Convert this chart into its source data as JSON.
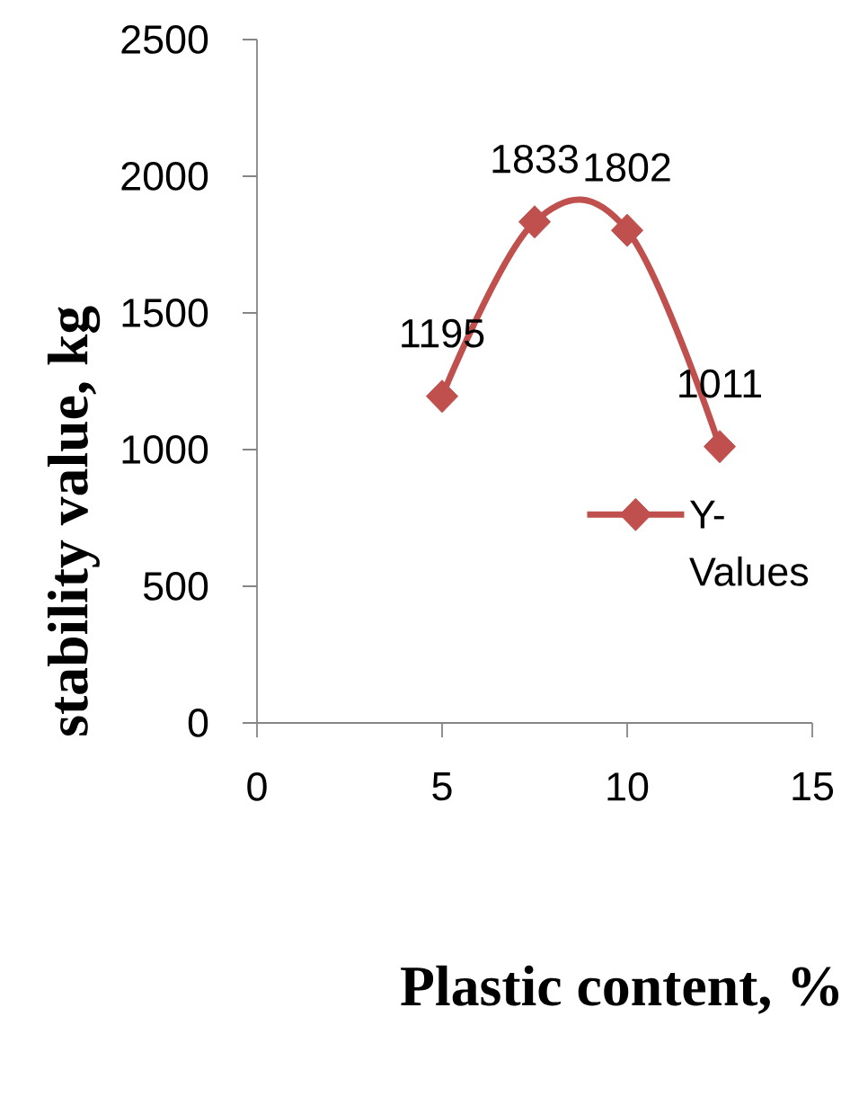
{
  "chart_data": {
    "type": "line",
    "xlabel": "Plastic content, %",
    "ylabel": "stability value, kg",
    "x": [
      5,
      7.5,
      10,
      12.5
    ],
    "series": [
      {
        "name": "Y-Values",
        "color": "#c0504d",
        "values": [
          1195,
          1833,
          1802,
          1011
        ]
      }
    ],
    "xlim": [
      0,
      15
    ],
    "ylim": [
      0,
      2500
    ],
    "xticks": [
      0,
      5,
      10,
      15
    ],
    "yticks": [
      0,
      500,
      1000,
      1500,
      2000,
      2500
    ],
    "data_labels": true,
    "legend": "right",
    "marker": "diamond",
    "line_style": "solid"
  }
}
